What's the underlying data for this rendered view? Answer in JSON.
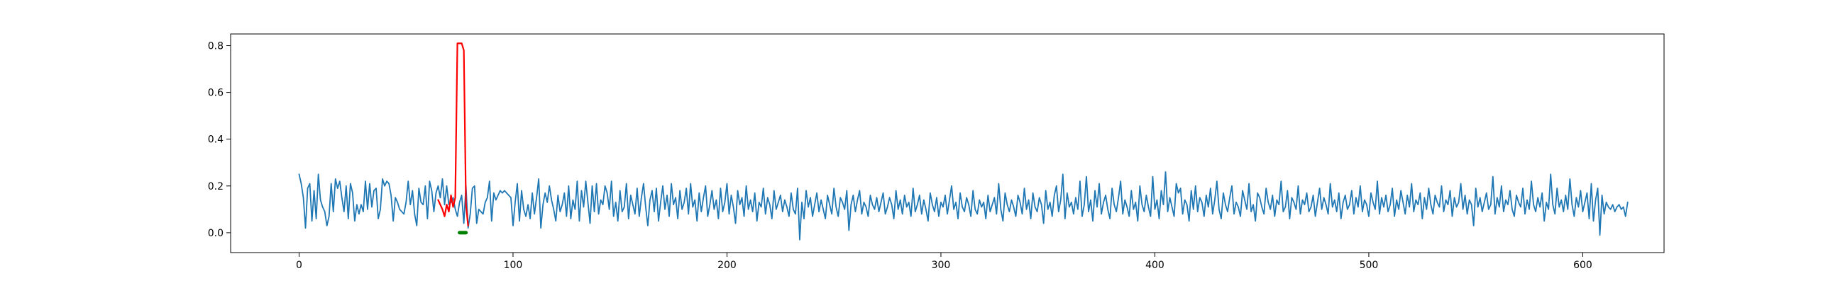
{
  "chart_data": {
    "type": "line",
    "title": "",
    "xlabel": "",
    "ylabel": "",
    "xlim": [
      -32,
      638
    ],
    "ylim": [
      -0.085,
      0.85
    ],
    "x_ticks": [
      0,
      100,
      200,
      300,
      400,
      500,
      600
    ],
    "x_tick_labels": [
      "0",
      "100",
      "200",
      "300",
      "400",
      "500",
      "600"
    ],
    "y_ticks": [
      0.0,
      0.2,
      0.4,
      0.6,
      0.8
    ],
    "y_tick_labels": [
      "0.0",
      "0.2",
      "0.4",
      "0.6",
      "0.8"
    ],
    "grid": false,
    "legend": "none",
    "series": [
      {
        "role": "signal",
        "color": "#1f77b4",
        "values": [
          0.25,
          0.21,
          0.15,
          0.02,
          0.19,
          0.21,
          0.05,
          0.18,
          0.06,
          0.25,
          0.14,
          0.11,
          0.09,
          0.03,
          0.07,
          0.21,
          0.09,
          0.23,
          0.19,
          0.22,
          0.15,
          0.09,
          0.2,
          0.06,
          0.21,
          0.17,
          0.05,
          0.12,
          0.08,
          0.12,
          0.09,
          0.22,
          0.1,
          0.21,
          0.11,
          0.18,
          0.19,
          0.06,
          0.1,
          0.23,
          0.2,
          0.22,
          0.21,
          0.16,
          0.05,
          0.15,
          0.13,
          0.1,
          0.09,
          0.08,
          0.13,
          0.22,
          0.12,
          0.18,
          0.08,
          0.03,
          0.19,
          0.13,
          0.12,
          0.2,
          0.06,
          0.22,
          0.18,
          0.09,
          0.17,
          0.2,
          0.15,
          0.23,
          0.12,
          0.2,
          0.12,
          0.13,
          0.15,
          0.1,
          0.07,
          0.13,
          0.16,
          0.04,
          0.2,
          0.02,
          0.08,
          0.19,
          0.2,
          0.04,
          0.1,
          0.09,
          0.08,
          0.13,
          0.15,
          0.22,
          0.05,
          0.17,
          0.14,
          0.16,
          0.18,
          0.17,
          0.18,
          0.17,
          0.16,
          0.15,
          0.03,
          0.13,
          0.21,
          0.05,
          0.18,
          0.1,
          0.07,
          0.12,
          0.06,
          0.17,
          0.08,
          0.15,
          0.23,
          0.02,
          0.12,
          0.17,
          0.13,
          0.2,
          0.14,
          0.1,
          0.05,
          0.16,
          0.09,
          0.12,
          0.17,
          0.07,
          0.2,
          0.06,
          0.14,
          0.1,
          0.22,
          0.05,
          0.18,
          0.11,
          0.22,
          0.13,
          0.04,
          0.2,
          0.09,
          0.21,
          0.08,
          0.14,
          0.12,
          0.2,
          0.17,
          0.1,
          0.22,
          0.07,
          0.13,
          0.05,
          0.18,
          0.09,
          0.11,
          0.21,
          0.06,
          0.16,
          0.12,
          0.08,
          0.19,
          0.07,
          0.15,
          0.21,
          0.11,
          0.03,
          0.14,
          0.18,
          0.09,
          0.19,
          0.05,
          0.13,
          0.2,
          0.1,
          0.16,
          0.07,
          0.21,
          0.12,
          0.15,
          0.06,
          0.18,
          0.1,
          0.13,
          0.19,
          0.08,
          0.21,
          0.11,
          0.14,
          0.05,
          0.17,
          0.09,
          0.15,
          0.2,
          0.07,
          0.12,
          0.18,
          0.1,
          0.14,
          0.06,
          0.19,
          0.09,
          0.13,
          0.21,
          0.08,
          0.16,
          0.11,
          0.04,
          0.18,
          0.12,
          0.15,
          0.07,
          0.2,
          0.1,
          0.14,
          0.09,
          0.17,
          0.05,
          0.13,
          0.11,
          0.19,
          0.08,
          0.15,
          0.12,
          0.06,
          0.18,
          0.1,
          0.13,
          0.16,
          0.09,
          0.14,
          0.11,
          0.07,
          0.17,
          0.1,
          0.08,
          0.19,
          -0.03,
          0.13,
          0.06,
          0.18,
          0.11,
          0.15,
          0.07,
          0.12,
          0.17,
          0.09,
          0.14,
          0.1,
          0.06,
          0.16,
          0.12,
          0.08,
          0.19,
          0.11,
          0.07,
          0.15,
          0.13,
          0.1,
          0.18,
          0.01,
          0.12,
          0.16,
          0.09,
          0.14,
          0.18,
          0.08,
          0.13,
          0.11,
          0.07,
          0.16,
          0.12,
          0.1,
          0.15,
          0.09,
          0.13,
          0.17,
          0.08,
          0.11,
          0.15,
          0.12,
          0.06,
          0.18,
          0.1,
          0.14,
          0.08,
          0.16,
          0.11,
          0.13,
          0.07,
          0.19,
          0.09,
          0.12,
          0.16,
          0.08,
          0.14,
          0.1,
          0.05,
          0.17,
          0.12,
          0.09,
          0.15,
          0.07,
          0.13,
          0.11,
          0.16,
          0.08,
          0.14,
          0.2,
          0.1,
          0.13,
          0.06,
          0.17,
          0.11,
          0.09,
          0.15,
          0.12,
          0.07,
          0.18,
          0.1,
          0.08,
          0.14,
          0.11,
          0.13,
          0.06,
          0.16,
          0.09,
          0.12,
          0.15,
          0.08,
          0.21,
          0.1,
          0.05,
          0.17,
          0.12,
          0.09,
          0.14,
          0.11,
          0.07,
          0.16,
          0.13,
          0.08,
          0.19,
          0.1,
          0.14,
          0.06,
          0.17,
          0.11,
          0.09,
          0.15,
          0.12,
          0.04,
          0.18,
          0.1,
          0.13,
          0.07,
          0.16,
          0.2,
          0.09,
          0.14,
          0.25,
          0.06,
          0.17,
          0.11,
          0.13,
          0.08,
          0.15,
          0.1,
          0.22,
          0.07,
          0.12,
          0.24,
          0.09,
          0.14,
          0.05,
          0.18,
          0.11,
          0.21,
          0.08,
          0.13,
          0.16,
          0.1,
          0.06,
          0.19,
          0.12,
          0.09,
          0.15,
          0.22,
          0.08,
          0.14,
          0.11,
          0.07,
          0.18,
          0.1,
          0.13,
          0.05,
          0.2,
          0.12,
          0.09,
          0.16,
          0.11,
          0.07,
          0.24,
          0.1,
          0.14,
          0.06,
          0.18,
          0.12,
          0.26,
          0.09,
          0.15,
          0.11,
          0.07,
          0.21,
          0.17,
          0.19,
          0.08,
          0.14,
          0.12,
          0.05,
          0.18,
          0.1,
          0.2,
          0.09,
          0.15,
          0.13,
          0.07,
          0.16,
          0.11,
          0.19,
          0.08,
          0.14,
          0.22,
          0.1,
          0.06,
          0.17,
          0.12,
          0.09,
          0.15,
          0.2,
          0.08,
          0.13,
          0.11,
          0.07,
          0.18,
          0.14,
          0.1,
          0.21,
          0.09,
          0.12,
          0.05,
          0.17,
          0.15,
          0.11,
          0.08,
          0.19,
          0.13,
          0.1,
          0.16,
          0.07,
          0.14,
          0.12,
          0.22,
          0.09,
          0.11,
          0.18,
          0.06,
          0.15,
          0.13,
          0.1,
          0.2,
          0.08,
          0.14,
          0.12,
          0.17,
          0.09,
          0.11,
          0.16,
          0.07,
          0.13,
          0.19,
          0.1,
          0.15,
          0.12,
          0.08,
          0.21,
          0.11,
          0.14,
          0.09,
          0.17,
          0.06,
          0.13,
          0.16,
          0.1,
          0.12,
          0.18,
          0.08,
          0.15,
          0.11,
          0.2,
          0.09,
          0.14,
          0.12,
          0.07,
          0.17,
          0.13,
          0.1,
          0.22,
          0.08,
          0.15,
          0.11,
          0.16,
          0.09,
          0.12,
          0.19,
          0.07,
          0.14,
          0.1,
          0.18,
          0.13,
          0.08,
          0.16,
          0.11,
          0.21,
          0.09,
          0.14,
          0.12,
          0.17,
          0.06,
          0.15,
          0.1,
          0.19,
          0.12,
          0.08,
          0.16,
          0.13,
          0.11,
          0.2,
          0.09,
          0.14,
          0.12,
          0.18,
          0.07,
          0.15,
          0.11,
          0.13,
          0.21,
          0.1,
          0.16,
          0.08,
          0.14,
          0.12,
          0.03,
          0.19,
          0.11,
          0.15,
          0.09,
          0.13,
          0.17,
          0.1,
          0.12,
          0.24,
          0.08,
          0.15,
          0.11,
          0.2,
          0.09,
          0.14,
          0.12,
          0.18,
          0.1,
          0.07,
          0.16,
          0.13,
          0.11,
          0.19,
          0.08,
          0.14,
          0.1,
          0.22,
          0.12,
          0.09,
          0.15,
          0.11,
          0.17,
          0.05,
          0.13,
          0.1,
          0.25,
          0.12,
          0.08,
          0.19,
          0.11,
          0.14,
          0.09,
          0.16,
          0.1,
          0.23,
          0.12,
          0.07,
          0.15,
          0.11,
          0.18,
          0.09,
          0.13,
          0.17,
          0.06,
          0.21,
          0.05,
          0.14,
          0.19,
          -0.01,
          0.16,
          0.08,
          0.13,
          0.11,
          0.1,
          0.12,
          0.09,
          0.11,
          0.12,
          0.1,
          0.11,
          0.07,
          0.13
        ]
      },
      {
        "role": "anomaly",
        "color": "#ff0000",
        "x": [
          65,
          66,
          67,
          68,
          69,
          70,
          71,
          72,
          73,
          74,
          75,
          76,
          77,
          78,
          79
        ],
        "values": [
          0.14,
          0.12,
          0.1,
          0.07,
          0.12,
          0.09,
          0.16,
          0.11,
          0.15,
          0.81,
          0.81,
          0.81,
          0.78,
          0.12,
          0.03
        ]
      },
      {
        "role": "marker",
        "color": "#008000",
        "x": [
          75,
          78
        ],
        "values": [
          0.0,
          0.0
        ]
      }
    ]
  }
}
